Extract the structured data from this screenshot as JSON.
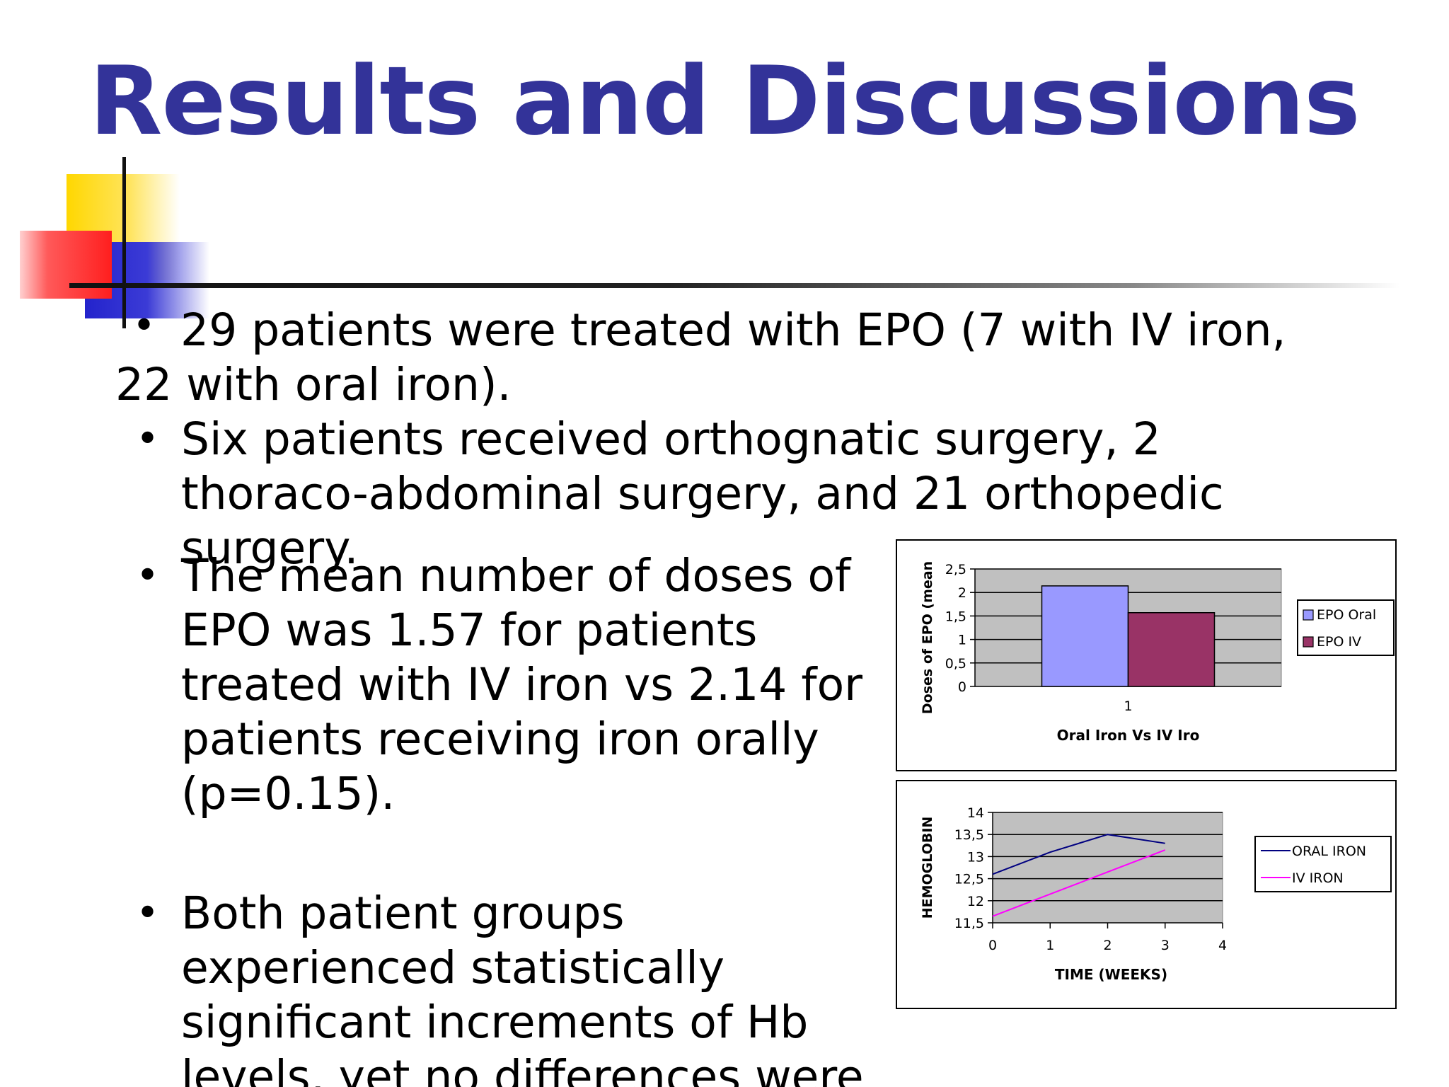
{
  "slide": {
    "title": "Results and Discussions",
    "bullets": [
      "29 patients were treated with EPO (7 with IV iron, 22 with oral iron).",
      "Six patients received orthognatic surgery, 2 thoraco-abdominal surgery, and 21 orthopedic surgery.",
      "The mean number of doses of EPO was 1.57 for patients treated with IV iron vs 2.14 for patients receiving iron orally (p=0.15).",
      "Both patient groups experienced statistically significant increments of Hb levels, yet no differences were"
    ],
    "bullet_symbol": "•"
  },
  "chart_data": [
    {
      "type": "bar",
      "categories": [
        "1"
      ],
      "series": [
        {
          "name": "EPO Oral",
          "values": [
            2.14
          ],
          "color": "#9999ff"
        },
        {
          "name": "EPO IV",
          "values": [
            1.57
          ],
          "color": "#993366"
        }
      ],
      "xlabel": "Oral Iron Vs IV Iro",
      "ylabel": "Doses of EPO (mean",
      "ylim": [
        0,
        2.5
      ],
      "yticks": [
        "0",
        "0,5",
        "1",
        "1,5",
        "2",
        "2,5"
      ],
      "grid": true,
      "plot_background": "#c0c0c0",
      "legend_position": "right"
    },
    {
      "type": "line",
      "x": [
        0,
        1,
        2,
        3
      ],
      "series": [
        {
          "name": "ORAL IRON",
          "values": [
            12.6,
            13.1,
            13.5,
            13.3
          ],
          "color": "#000080"
        },
        {
          "name": "IV IRON",
          "values": [
            11.65,
            12.15,
            12.65,
            13.15
          ],
          "color": "#ff00ff"
        }
      ],
      "xlabel": "TIME (WEEKS)",
      "ylabel": "HEMOGLOBIN",
      "xlim": [
        0,
        4
      ],
      "ylim": [
        11.5,
        14
      ],
      "xticks": [
        "0",
        "1",
        "2",
        "3",
        "4"
      ],
      "yticks": [
        "11,5",
        "12",
        "12,5",
        "13",
        "13,5",
        "14"
      ],
      "grid": true,
      "plot_background": "#c0c0c0",
      "legend_position": "right"
    }
  ]
}
